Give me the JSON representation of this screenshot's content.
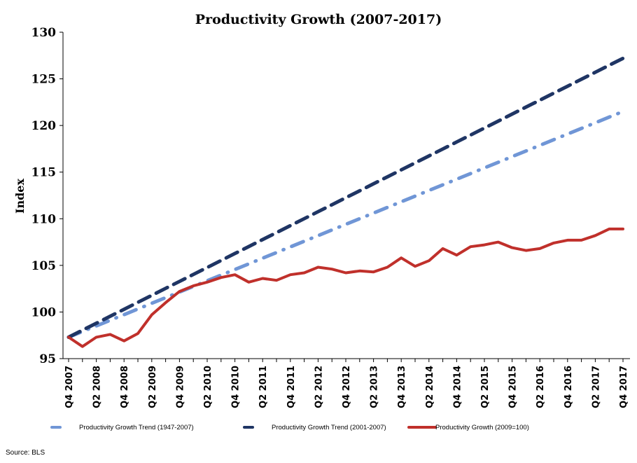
{
  "chart_data": {
    "type": "line",
    "title": "Productivity Growth (2007-2017)",
    "xlabel": "",
    "ylabel": "Index",
    "ylim": [
      95,
      130
    ],
    "yticks": [
      95,
      100,
      105,
      110,
      115,
      120,
      125,
      130
    ],
    "grid": false,
    "legend_position": "bottom",
    "source": "Source: BLS",
    "x": [
      "Q4 2007",
      "Q1 2008",
      "Q2 2008",
      "Q3 2008",
      "Q4 2008",
      "Q1 2009",
      "Q2 2009",
      "Q3 2009",
      "Q4 2009",
      "Q1 2010",
      "Q2 2010",
      "Q3 2010",
      "Q4 2010",
      "Q1 2011",
      "Q2 2011",
      "Q3 2011",
      "Q4 2011",
      "Q1 2012",
      "Q2 2012",
      "Q3 2012",
      "Q4 2012",
      "Q1 2013",
      "Q2 2013",
      "Q3 2013",
      "Q4 2013",
      "Q1 2014",
      "Q2 2014",
      "Q3 2014",
      "Q4 2014",
      "Q1 2015",
      "Q2 2015",
      "Q3 2015",
      "Q4 2015",
      "Q1 2016",
      "Q2 2016",
      "Q3 2016",
      "Q4 2016",
      "Q1 2017",
      "Q2 2017",
      "Q3 2017",
      "Q4 2017"
    ],
    "xtick_labels": [
      "Q4 2007",
      "Q2 2008",
      "Q4 2008",
      "Q2 2009",
      "Q4 2009",
      "Q2 2010",
      "Q4 2010",
      "Q2 2011",
      "Q4 2011",
      "Q2 2012",
      "Q4 2012",
      "Q2 2013",
      "Q4 2013",
      "Q2 2014",
      "Q4 2014",
      "Q2 2015",
      "Q4 2015",
      "Q2 2016",
      "Q4 2016",
      "Q2 2017",
      "Q4 2017"
    ],
    "series": [
      {
        "name": "Productivity Growth Trend (1947-2007)",
        "color": "#7096d6",
        "style": "dash-dot",
        "start": 97.3,
        "end": 121.5,
        "values": []
      },
      {
        "name": "Productivity Growth Trend (2001-2007)",
        "color": "#1f3564",
        "style": "dash",
        "start": 97.3,
        "end": 127.2,
        "values": []
      },
      {
        "name": "Productivity Growth (2009=100)",
        "color": "#c0302b",
        "style": "solid",
        "values": [
          97.3,
          96.3,
          97.3,
          97.6,
          96.9,
          97.7,
          99.7,
          101.0,
          102.2,
          102.8,
          103.2,
          103.7,
          104.0,
          103.2,
          103.6,
          103.4,
          104.0,
          104.2,
          104.8,
          104.6,
          104.2,
          104.4,
          104.3,
          104.8,
          105.8,
          104.9,
          105.5,
          106.8,
          106.1,
          107.0,
          107.2,
          107.5,
          106.9,
          106.6,
          106.8,
          107.4,
          107.7,
          107.7,
          108.2,
          108.9,
          108.9
        ]
      }
    ]
  }
}
